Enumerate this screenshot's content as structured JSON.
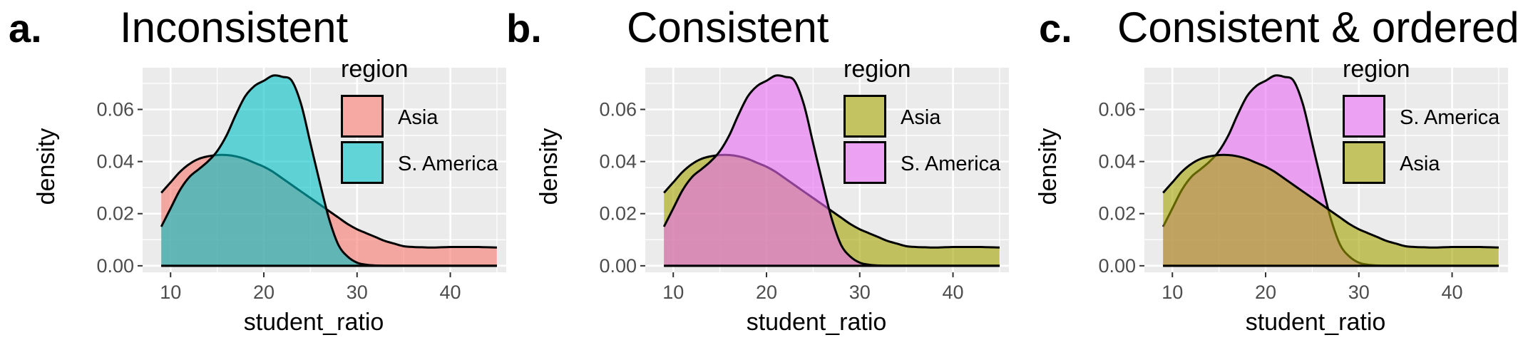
{
  "panels": [
    {
      "letter": "a.",
      "title": "Inconsistent",
      "legend_title": "region",
      "layers": [
        "Asia",
        "S. America"
      ],
      "legend": [
        {
          "label": "Asia",
          "color": "#F8766D"
        },
        {
          "label": "S. America",
          "color": "#00BFC4"
        }
      ]
    },
    {
      "letter": "b.",
      "title": "Consistent",
      "legend_title": "region",
      "layers": [
        "Asia",
        "S. America"
      ],
      "legend": [
        {
          "label": "Asia",
          "color": "#A3A500"
        },
        {
          "label": "S. America",
          "color": "#E76BF3"
        }
      ]
    },
    {
      "letter": "c.",
      "title": "Consistent & ordered",
      "legend_title": "region",
      "layers": [
        "S. America",
        "Asia"
      ],
      "legend": [
        {
          "label": "S. America",
          "color": "#E76BF3"
        },
        {
          "label": "Asia",
          "color": "#A3A500"
        }
      ]
    }
  ],
  "chart_data": {
    "type": "area",
    "xlabel": "student_ratio",
    "ylabel": "density",
    "xlim": [
      7,
      46
    ],
    "ylim": [
      -0.0025,
      0.076
    ],
    "xticks": [
      10,
      20,
      30,
      40
    ],
    "xtick_labels": [
      "10",
      "20",
      "30",
      "40"
    ],
    "yticks": [
      0,
      0.02,
      0.04,
      0.06
    ],
    "ytick_labels": [
      "0.00",
      "0.02",
      "0.04",
      "0.06"
    ],
    "grid": true,
    "legend_position": "right",
    "series": [
      {
        "name": "Asia",
        "x": [
          9,
          10,
          11,
          12,
          13,
          14,
          15,
          16,
          17,
          18,
          19,
          20,
          21,
          22,
          23,
          24,
          25,
          26,
          27,
          28,
          29,
          30,
          31,
          32,
          33,
          34,
          35,
          36,
          37,
          38,
          39,
          40,
          41,
          42,
          43,
          44,
          45
        ],
        "y": [
          0.028,
          0.032,
          0.036,
          0.039,
          0.041,
          0.042,
          0.0425,
          0.0425,
          0.042,
          0.041,
          0.0395,
          0.038,
          0.036,
          0.0335,
          0.031,
          0.0285,
          0.026,
          0.0235,
          0.021,
          0.0185,
          0.016,
          0.014,
          0.0125,
          0.011,
          0.0095,
          0.0085,
          0.0075,
          0.0072,
          0.0071,
          0.007,
          0.0071,
          0.0072,
          0.0072,
          0.0072,
          0.0072,
          0.0071,
          0.007
        ]
      },
      {
        "name": "S. America",
        "x": [
          9,
          10,
          11,
          12,
          13,
          14,
          15,
          16,
          17,
          18,
          19,
          20,
          21,
          22,
          23,
          24,
          25,
          26,
          27,
          28,
          29,
          30,
          31,
          32,
          33,
          34,
          35,
          36,
          37,
          38,
          39,
          40,
          41,
          42,
          43,
          44,
          45
        ],
        "y": [
          0.015,
          0.022,
          0.029,
          0.034,
          0.037,
          0.04,
          0.044,
          0.05,
          0.058,
          0.065,
          0.069,
          0.071,
          0.073,
          0.0725,
          0.071,
          0.062,
          0.047,
          0.032,
          0.018,
          0.008,
          0.0035,
          0.0012,
          0.0004,
          0.0001,
          0,
          0,
          0,
          0,
          0,
          0,
          0,
          0,
          0,
          0,
          0,
          0,
          0
        ]
      }
    ]
  }
}
